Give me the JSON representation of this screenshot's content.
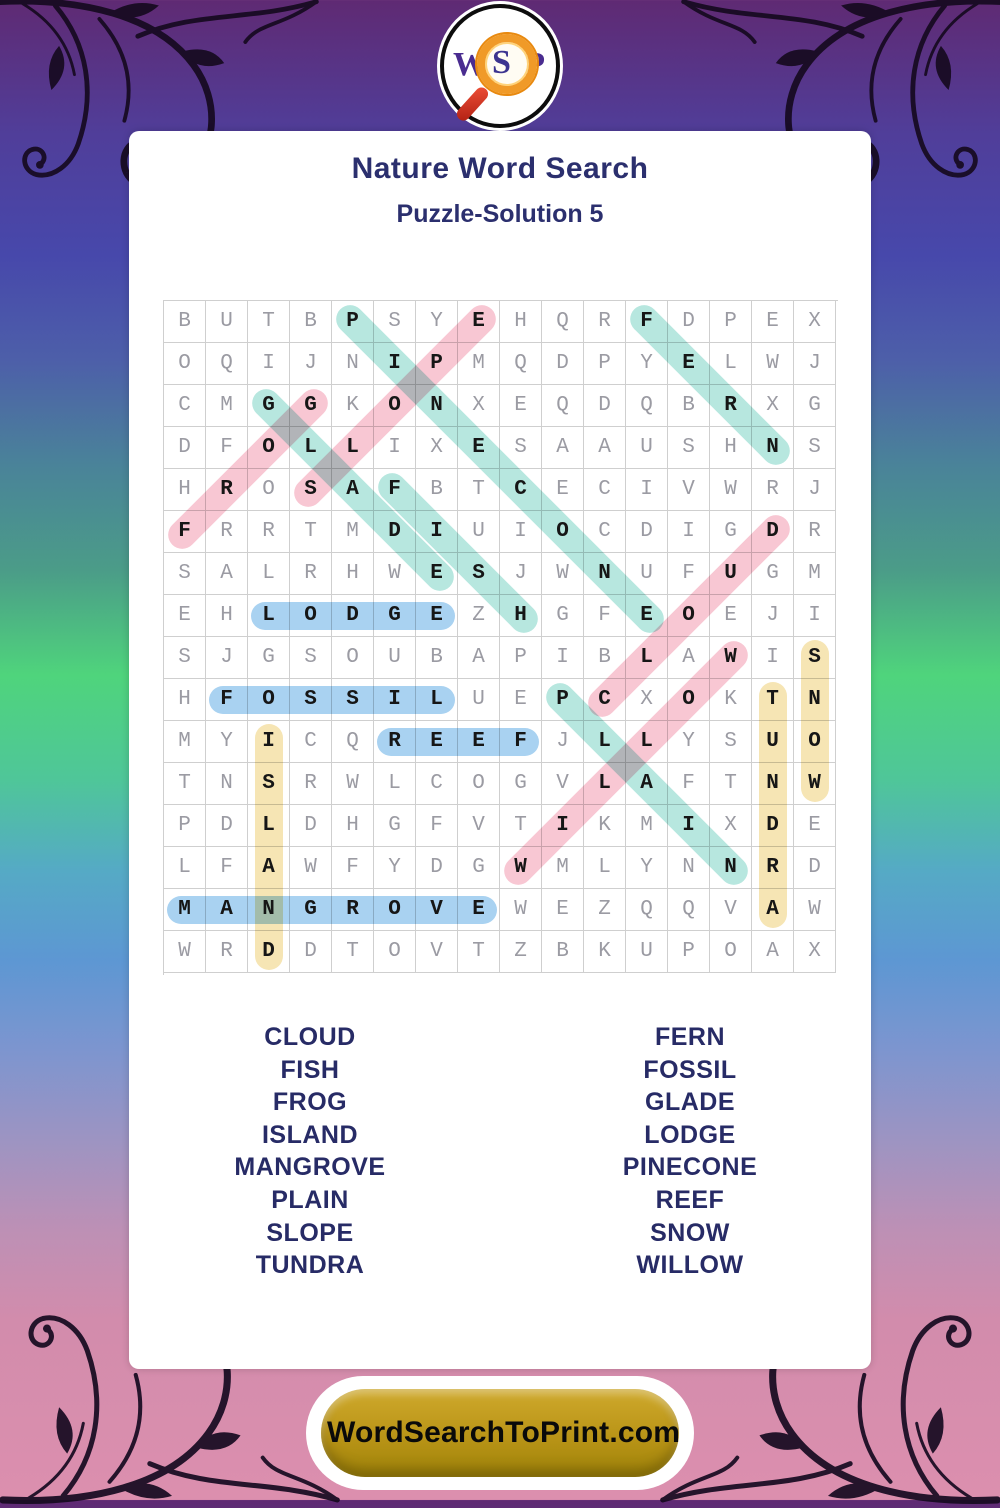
{
  "logo": {
    "letters": [
      "W",
      "S",
      "P"
    ]
  },
  "header": {
    "title": "Nature Word Search",
    "subtitle": "Puzzle-Solution 5"
  },
  "palette": {
    "teal": "#b7e7df",
    "pink": "#f8c7d3",
    "blue": "#a9d2f1",
    "yellow": "#f6e5b4",
    "navy_text": "#272b66",
    "grid_line": "#cfcfcf",
    "letter_gray": "#9b9ba3",
    "letter_solution": "#161616",
    "footer_gold": "#b99417"
  },
  "grid": {
    "size": 16,
    "rows": [
      "BUTBPSYEHQRFDPEX",
      "OQIJNIPMQDPYELWJ",
      "CMGGKONXEQDQBRXG",
      "DFOLLIXESAAUSHNS",
      "HROSAFBTCECIVWRJ",
      "FRRTMDIUIOCDIGDR",
      "SALRHWESJWNUFUGM",
      "EHLODGEZHGFEOEJI",
      "SJGSOUBAPIBLAWIS",
      "HFOSSILUEPCXOKTN",
      "MYICQREEFJLLYSUO",
      "TNSRWLCOGVLAFTNW",
      "PDLDHGFVTIKMIXDE",
      "LFAWFYDGWMLYNNRD",
      "MANGROVEWEZQQVAW",
      "WRDDTOVTZBKUPOAX"
    ]
  },
  "solutions": [
    {
      "word": "PINECONE",
      "color": "teal",
      "start": [
        1,
        5
      ],
      "end": [
        8,
        12
      ]
    },
    {
      "word": "SLOPE",
      "color": "pink",
      "start": [
        5,
        4
      ],
      "end": [
        1,
        8
      ]
    },
    {
      "word": "FERN",
      "color": "teal",
      "start": [
        1,
        12
      ],
      "end": [
        4,
        15
      ]
    },
    {
      "word": "GLADE",
      "color": "teal",
      "start": [
        3,
        3
      ],
      "end": [
        7,
        7
      ]
    },
    {
      "word": "FROG",
      "color": "pink",
      "start": [
        6,
        1
      ],
      "end": [
        3,
        4
      ]
    },
    {
      "word": "FISH",
      "color": "teal",
      "start": [
        5,
        6
      ],
      "end": [
        8,
        9
      ]
    },
    {
      "word": "CLOUD",
      "color": "pink",
      "start": [
        10,
        11
      ],
      "end": [
        6,
        15
      ]
    },
    {
      "word": "LODGE",
      "color": "blue",
      "start": [
        8,
        3
      ],
      "end": [
        8,
        7
      ]
    },
    {
      "word": "FOSSIL",
      "color": "blue",
      "start": [
        10,
        2
      ],
      "end": [
        10,
        7
      ]
    },
    {
      "word": "REEF",
      "color": "blue",
      "start": [
        11,
        6
      ],
      "end": [
        11,
        9
      ]
    },
    {
      "word": "MANGROVE",
      "color": "blue",
      "start": [
        15,
        1
      ],
      "end": [
        15,
        8
      ]
    },
    {
      "word": "ISLAND",
      "color": "yellow",
      "start": [
        11,
        3
      ],
      "end": [
        16,
        3
      ]
    },
    {
      "word": "TUNDRA",
      "color": "yellow",
      "start": [
        10,
        15
      ],
      "end": [
        15,
        15
      ]
    },
    {
      "word": "SNOW",
      "color": "yellow",
      "start": [
        9,
        16
      ],
      "end": [
        12,
        16
      ]
    },
    {
      "word": "PLAIN",
      "color": "teal",
      "start": [
        10,
        10
      ],
      "end": [
        14,
        14
      ]
    },
    {
      "word": "WILLOW",
      "color": "pink",
      "start": [
        14,
        9
      ],
      "end": [
        9,
        14
      ]
    }
  ],
  "word_list": {
    "left": [
      "CLOUD",
      "FISH",
      "FROG",
      "ISLAND",
      "MANGROVE",
      "PLAIN",
      "SLOPE",
      "TUNDRA"
    ],
    "right": [
      "FERN",
      "FOSSIL",
      "GLADE",
      "LODGE",
      "PINECONE",
      "REEF",
      "SNOW",
      "WILLOW"
    ]
  },
  "footer": {
    "site_label": "WordSearchToPrint.com"
  }
}
